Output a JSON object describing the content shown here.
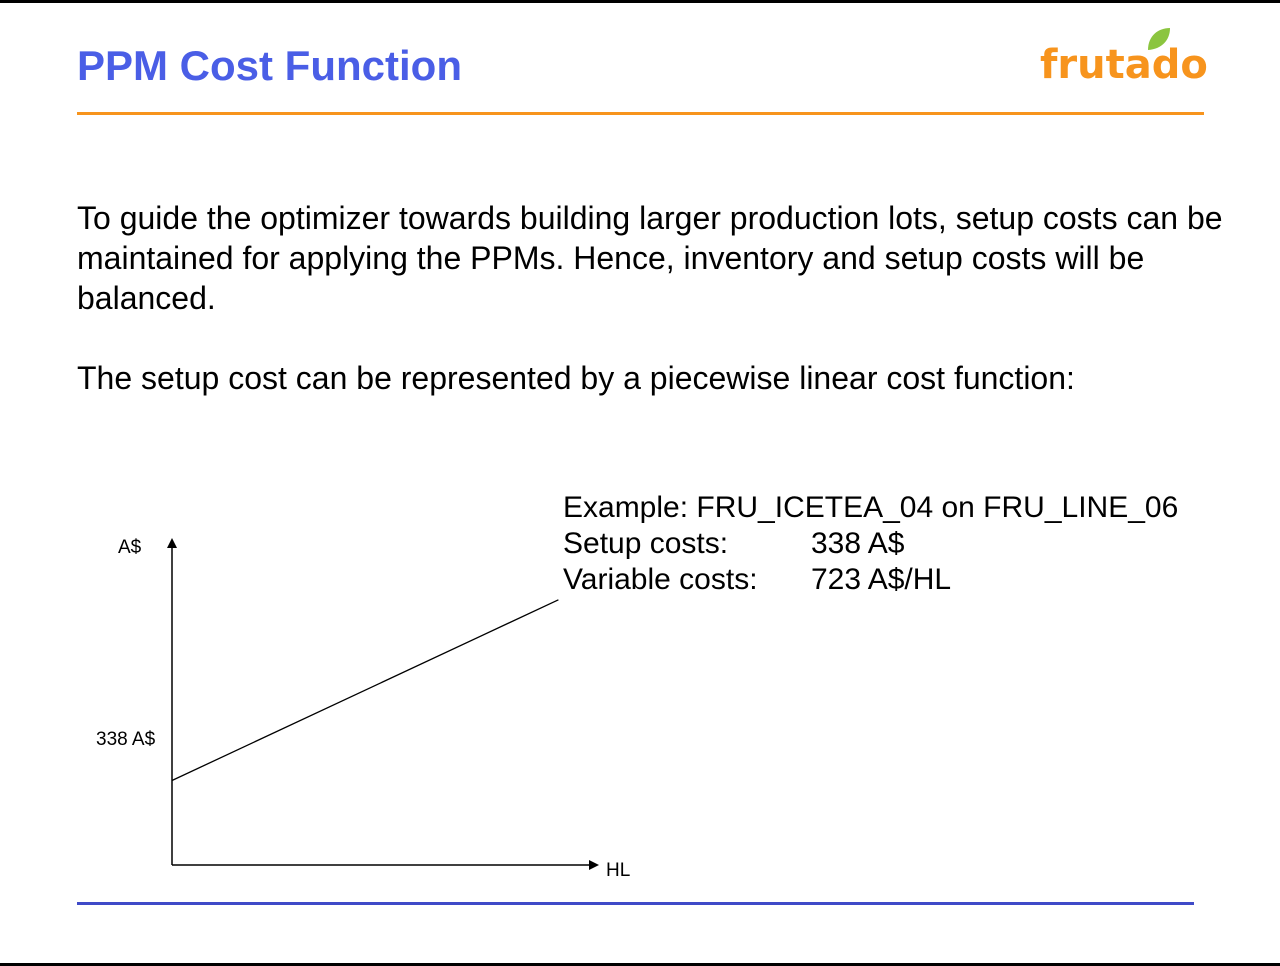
{
  "slide": {
    "title": "PPM Cost Function",
    "paragraph1": "To guide the optimizer towards building larger production lots, setup costs can be maintained for applying the PPMs. Hence, inventory and setup costs will be balanced.",
    "paragraph2": "The setup cost can be represented by a piecewise linear cost function:"
  },
  "logo": {
    "text": "frutado",
    "primary_color": "#f7941d",
    "accent_color": "#8bc53f"
  },
  "example": {
    "heading": "Example: FRU_ICETEA_04 on FRU_LINE_06",
    "setup_label": "Setup costs:",
    "setup_value": "338 A$",
    "variable_label": "Variable costs:",
    "variable_value": "723 A$/HL"
  },
  "chart_data": {
    "type": "line",
    "xlabel": "HL",
    "ylabel": "A$",
    "intercept_label": "338 A$",
    "series": [
      {
        "x": [
          0,
          1
        ],
        "y": [
          338,
          1061
        ]
      }
    ],
    "xlim": [
      0,
      1.1
    ],
    "ylim": [
      0,
      1300
    ],
    "grid": false,
    "legend": "none"
  },
  "colors": {
    "title": "#4a5ee6",
    "rule_top": "#f7941d",
    "rule_bottom": "#3f4ac8"
  }
}
